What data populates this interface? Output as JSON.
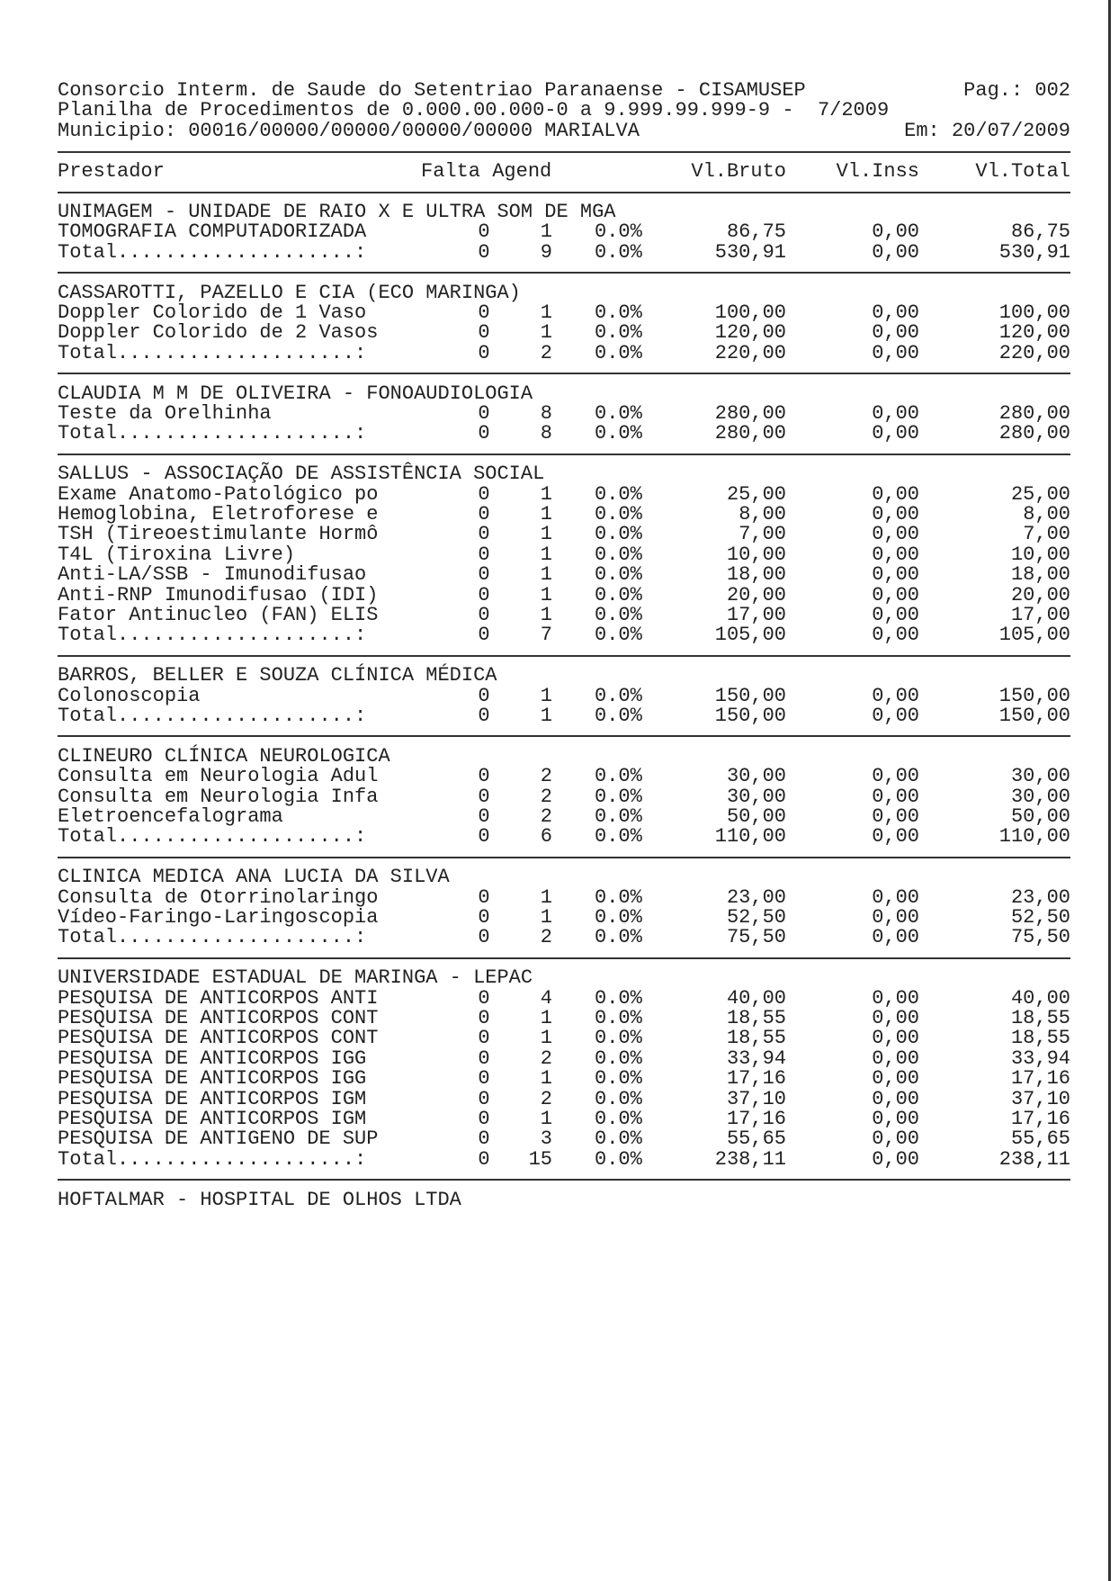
{
  "header": {
    "line1": "Consorcio Interm. de Saude do Setentriao Paranaense - CISAMUSEP",
    "page": "Pag.: 002",
    "line2": "Planilha de Procedimentos de 0.000.00.000-0 a 9.999.99.999-9 -  7/2009",
    "line3": "Municipio: 00016/00000/00000/00000/00000 MARIALVA",
    "date": "Em: 20/07/2009"
  },
  "columns": {
    "prestador": "Prestador",
    "falta_agend": "Falta Agend",
    "bruto": "Vl.Bruto",
    "inss": "Vl.Inss",
    "total": "Vl.Total"
  },
  "sections": [
    {
      "title": "UNIMAGEM - UNIDADE DE RAIO X E ULTRA SOM DE MGA",
      "items": [
        [
          "TOMOGRAFIA COMPUTADORIZADA",
          "0",
          "1",
          "0.0%",
          "86,75",
          "0,00",
          "86,75"
        ]
      ],
      "total": [
        "Total....................:",
        "0",
        "9",
        "0.0%",
        "530,91",
        "0,00",
        "530,91"
      ]
    },
    {
      "title": "CASSAROTTI, PAZELLO E CIA (ECO MARINGA)",
      "items": [
        [
          "Doppler Colorido de 1 Vaso",
          "0",
          "1",
          "0.0%",
          "100,00",
          "0,00",
          "100,00"
        ],
        [
          "Doppler Colorido de 2 Vasos",
          "0",
          "1",
          "0.0%",
          "120,00",
          "0,00",
          "120,00"
        ]
      ],
      "total": [
        "Total....................:",
        "0",
        "2",
        "0.0%",
        "220,00",
        "0,00",
        "220,00"
      ]
    },
    {
      "title": "CLAUDIA M M DE OLIVEIRA - FONOAUDIOLOGIA",
      "items": [
        [
          "Teste da Orelhinha",
          "0",
          "8",
          "0.0%",
          "280,00",
          "0,00",
          "280,00"
        ]
      ],
      "total": [
        "Total....................:",
        "0",
        "8",
        "0.0%",
        "280,00",
        "0,00",
        "280,00"
      ]
    },
    {
      "title": "SALLUS - ASSOCIAÇÃO DE ASSISTÊNCIA SOCIAL",
      "items": [
        [
          "Exame Anatomo-Patológico po",
          "0",
          "1",
          "0.0%",
          "25,00",
          "0,00",
          "25,00"
        ],
        [
          "Hemoglobina, Eletroforese e",
          "0",
          "1",
          "0.0%",
          "8,00",
          "0,00",
          "8,00"
        ],
        [
          "TSH (Tireoestimulante Hormô",
          "0",
          "1",
          "0.0%",
          "7,00",
          "0,00",
          "7,00"
        ],
        [
          "T4L (Tiroxina Livre)",
          "0",
          "1",
          "0.0%",
          "10,00",
          "0,00",
          "10,00"
        ],
        [
          "Anti-LA/SSB - Imunodifusao",
          "0",
          "1",
          "0.0%",
          "18,00",
          "0,00",
          "18,00"
        ],
        [
          "Anti-RNP Imunodifusao (IDI)",
          "0",
          "1",
          "0.0%",
          "20,00",
          "0,00",
          "20,00"
        ],
        [
          "Fator Antinucleo (FAN) ELIS",
          "0",
          "1",
          "0.0%",
          "17,00",
          "0,00",
          "17,00"
        ]
      ],
      "total": [
        "Total....................:",
        "0",
        "7",
        "0.0%",
        "105,00",
        "0,00",
        "105,00"
      ]
    },
    {
      "title": "BARROS, BELLER E SOUZA CLÍNICA MÉDICA",
      "items": [
        [
          "Colonoscopia",
          "0",
          "1",
          "0.0%",
          "150,00",
          "0,00",
          "150,00"
        ]
      ],
      "total": [
        "Total....................:",
        "0",
        "1",
        "0.0%",
        "150,00",
        "0,00",
        "150,00"
      ]
    },
    {
      "title": "CLINEURO CLÍNICA NEUROLOGICA",
      "items": [
        [
          "Consulta em Neurologia Adul",
          "0",
          "2",
          "0.0%",
          "30,00",
          "0,00",
          "30,00"
        ],
        [
          "Consulta em Neurologia Infa",
          "0",
          "2",
          "0.0%",
          "30,00",
          "0,00",
          "30,00"
        ],
        [
          "Eletroencefalograma",
          "0",
          "2",
          "0.0%",
          "50,00",
          "0,00",
          "50,00"
        ]
      ],
      "total": [
        "Total....................:",
        "0",
        "6",
        "0.0%",
        "110,00",
        "0,00",
        "110,00"
      ]
    },
    {
      "title": "CLINICA MEDICA ANA LUCIA DA SILVA",
      "items": [
        [
          "Consulta de Otorrinolaringo",
          "0",
          "1",
          "0.0%",
          "23,00",
          "0,00",
          "23,00"
        ],
        [
          "Vídeo-Faringo-Laringoscopia",
          "0",
          "1",
          "0.0%",
          "52,50",
          "0,00",
          "52,50"
        ]
      ],
      "total": [
        "Total....................:",
        "0",
        "2",
        "0.0%",
        "75,50",
        "0,00",
        "75,50"
      ]
    },
    {
      "title": "UNIVERSIDADE ESTADUAL DE MARINGA - LEPAC",
      "items": [
        [
          "PESQUISA DE ANTICORPOS ANTI",
          "0",
          "4",
          "0.0%",
          "40,00",
          "0,00",
          "40,00"
        ],
        [
          "PESQUISA DE ANTICORPOS CONT",
          "0",
          "1",
          "0.0%",
          "18,55",
          "0,00",
          "18,55"
        ],
        [
          "PESQUISA DE ANTICORPOS CONT",
          "0",
          "1",
          "0.0%",
          "18,55",
          "0,00",
          "18,55"
        ],
        [
          "PESQUISA DE ANTICORPOS IGG",
          "0",
          "2",
          "0.0%",
          "33,94",
          "0,00",
          "33,94"
        ],
        [
          "PESQUISA DE ANTICORPOS IGG",
          "0",
          "1",
          "0.0%",
          "17,16",
          "0,00",
          "17,16"
        ],
        [
          "PESQUISA DE ANTICORPOS IGM",
          "0",
          "2",
          "0.0%",
          "37,10",
          "0,00",
          "37,10"
        ],
        [
          "PESQUISA DE ANTICORPOS IGM",
          "0",
          "1",
          "0.0%",
          "17,16",
          "0,00",
          "17,16"
        ],
        [
          "PESQUISA DE ANTIGENO DE SUP",
          "0",
          "3",
          "0.0%",
          "55,65",
          "0,00",
          "55,65"
        ]
      ],
      "total": [
        "Total....................:",
        "0",
        "15",
        "0.0%",
        "238,11",
        "0,00",
        "238,11"
      ]
    },
    {
      "title": "HOFTALMAR - HOSPITAL DE OLHOS LTDA",
      "items": []
    }
  ]
}
